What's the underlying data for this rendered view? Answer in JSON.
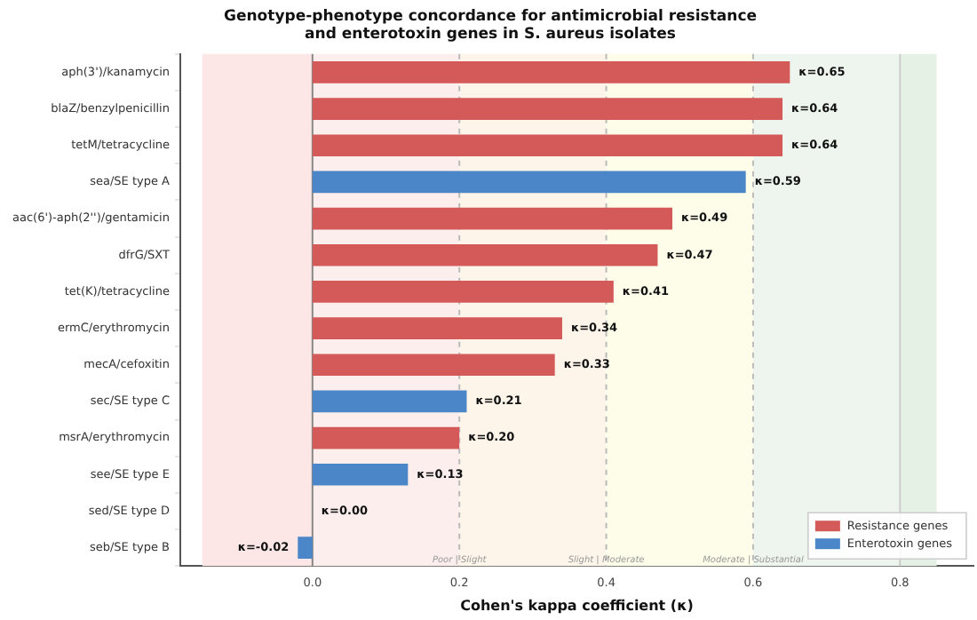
{
  "chart_data": {
    "type": "bar",
    "orientation": "horizontal",
    "title": "Genotype-phenotype concordance for antimicrobial resistance\nand enterotoxin genes in S. aureus isolates",
    "xlabel": "Cohen's kappa coefficient (κ)",
    "categories": [
      "aph(3')/kanamycin",
      "blaZ/benzylpenicillin",
      "tetM/tetracycline",
      "sea/SE type A",
      "aac(6')-aph(2'')/gentamicin",
      "dfrG/SXT",
      "tet(K)/tetracycline",
      "ermC/erythromycin",
      "mecA/cefoxitin",
      "sec/SE type C",
      "msrA/erythromycin",
      "see/SE type E",
      "sed/SE type D",
      "seb/SE type B"
    ],
    "series": [
      {
        "name": "Resistance genes",
        "color": "#d45a5a",
        "values": [
          0.65,
          0.64,
          0.64,
          null,
          0.49,
          0.47,
          0.41,
          0.34,
          0.33,
          null,
          0.2,
          null,
          null,
          null
        ],
        "value_labels": [
          "κ=0.65",
          "κ=0.64",
          "κ=0.64",
          null,
          "κ=0.49",
          "κ=0.47",
          "κ=0.41",
          "κ=0.34",
          "κ=0.33",
          null,
          "κ=0.20",
          null,
          null,
          null
        ]
      },
      {
        "name": "Enterotoxin genes",
        "color": "#4a86c8",
        "values": [
          null,
          null,
          null,
          0.59,
          null,
          null,
          null,
          null,
          null,
          0.21,
          null,
          0.13,
          0.0,
          -0.02
        ],
        "value_labels": [
          null,
          null,
          null,
          "κ=0.59",
          null,
          null,
          null,
          null,
          null,
          "κ=0.21",
          null,
          "κ=0.13",
          "κ=0.00",
          "κ=-0.02"
        ]
      }
    ],
    "xlim": [
      -0.18,
      0.9
    ],
    "xticks": [
      {
        "value": 0,
        "label": "0.0"
      },
      {
        "value": 0.2,
        "label": "0.2"
      },
      {
        "value": 0.4,
        "label": "0.4"
      },
      {
        "value": 0.6,
        "label": "0.6"
      },
      {
        "value": 0.8,
        "label": "0.8"
      }
    ],
    "bands": [
      {
        "axis": "x",
        "from": -0.15,
        "to": 0,
        "color": "#fde6e6"
      },
      {
        "axis": "x",
        "from": 0,
        "to": 0.2,
        "color": "#fdeeee"
      },
      {
        "axis": "x",
        "from": 0.2,
        "to": 0.4,
        "color": "#fdf4ea"
      },
      {
        "axis": "x",
        "from": 0.4,
        "to": 0.6,
        "color": "#fefdea"
      },
      {
        "axis": "x",
        "from": 0.6,
        "to": 0.8,
        "color": "#eef5ee"
      },
      {
        "axis": "x",
        "from": 0.8,
        "to": 0.85,
        "color": "#e6f1e6"
      }
    ],
    "ref_lines": [
      {
        "axis": "x",
        "value": 0,
        "color": "#888888",
        "line_style": "solid"
      },
      {
        "axis": "x",
        "value": 0.2,
        "label": "Poor | Slight",
        "color": "#bbbbbb",
        "line_style": "dashed"
      },
      {
        "axis": "x",
        "value": 0.4,
        "label": "Slight | Moderate",
        "color": "#bbbbbb",
        "line_style": "dashed"
      },
      {
        "axis": "x",
        "value": 0.6,
        "label": "Moderate | Substantial",
        "color": "#bbbbbb",
        "line_style": "dashed"
      },
      {
        "axis": "x",
        "value": 0.8,
        "color": "#cccccc",
        "line_style": "solid"
      }
    ],
    "legend": "bottom right",
    "grid": false
  }
}
